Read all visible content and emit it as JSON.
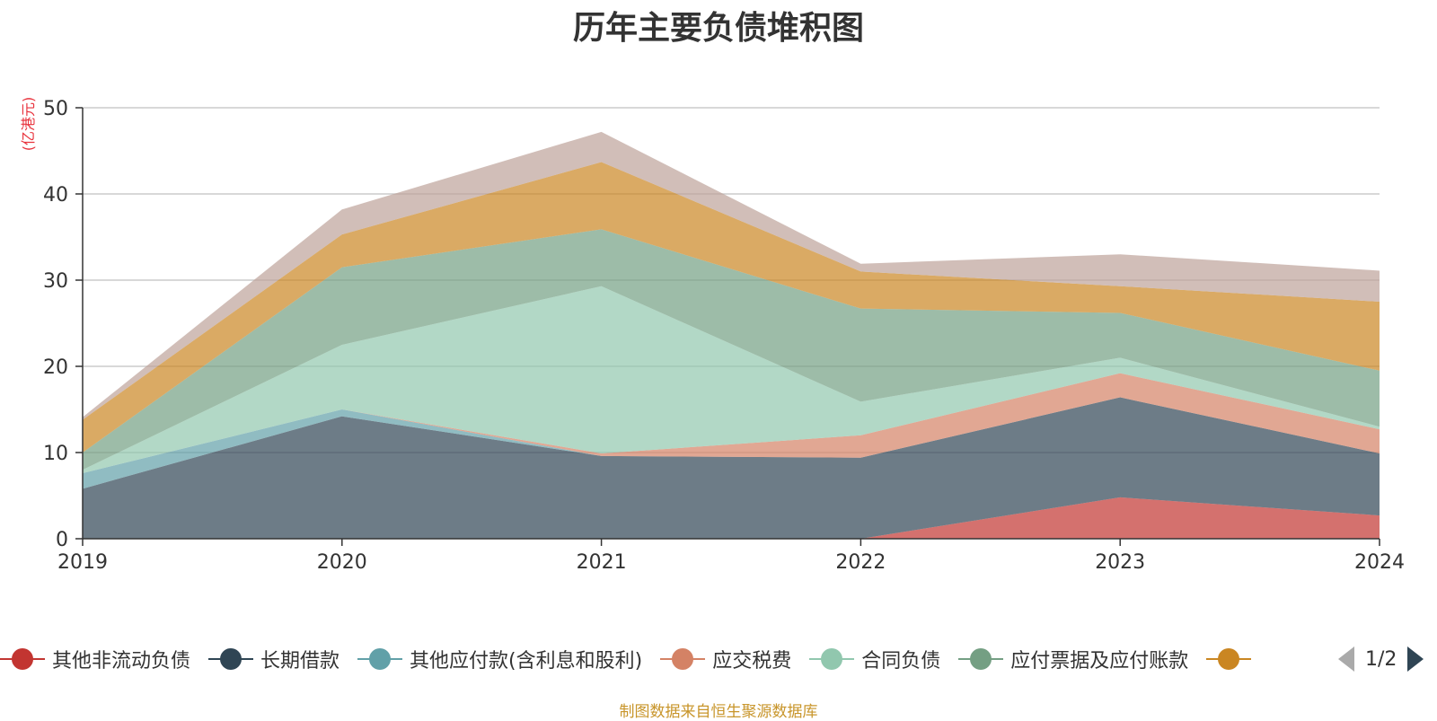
{
  "chart_data": {
    "type": "area",
    "stacked": true,
    "title": "历年主要负债堆积图",
    "unit_label": "(亿港元)",
    "x": [
      "2019",
      "2020",
      "2021",
      "2022",
      "2023",
      "2024"
    ],
    "ylim": [
      0,
      50
    ],
    "yticks": [
      "0",
      "10",
      "20",
      "30",
      "40",
      "50"
    ],
    "grid": true,
    "series": [
      {
        "name": "其他非流动负债",
        "color": "#c23531",
        "values": [
          0,
          0,
          0,
          0,
          4.8,
          2.7
        ]
      },
      {
        "name": "长期借款",
        "color": "#2f4554",
        "values": [
          5.8,
          14.2,
          9.6,
          9.4,
          11.6,
          7.2
        ]
      },
      {
        "name": "其他应付款(含利息和股利)",
        "color": "#61a0a8",
        "values": [
          1.8,
          0.8,
          0.0,
          0.0,
          0.0,
          0.0
        ]
      },
      {
        "name": "应交税费",
        "color": "#d48265",
        "values": [
          0.0,
          0.0,
          0.3,
          2.6,
          2.8,
          2.8
        ]
      },
      {
        "name": "合同负债",
        "color": "#91c7ae",
        "values": [
          0.4,
          7.5,
          19.4,
          3.9,
          1.8,
          0.3
        ]
      },
      {
        "name": "应付票据及应付账款",
        "color": "#749f83",
        "values": [
          2.0,
          9.0,
          6.6,
          10.8,
          5.2,
          6.5
        ]
      },
      {
        "name": "",
        "color": "#ca8622",
        "values": [
          3.8,
          3.8,
          7.8,
          4.3,
          3.1,
          8.0
        ]
      },
      {
        "name": "",
        "color": "#bda29a",
        "values": [
          0.3,
          2.9,
          3.5,
          0.9,
          3.7,
          3.6
        ]
      }
    ],
    "legend_position": "bottom"
  },
  "legend": {
    "page": "1/2"
  },
  "source_note": "制图数据来自恒生聚源数据库"
}
